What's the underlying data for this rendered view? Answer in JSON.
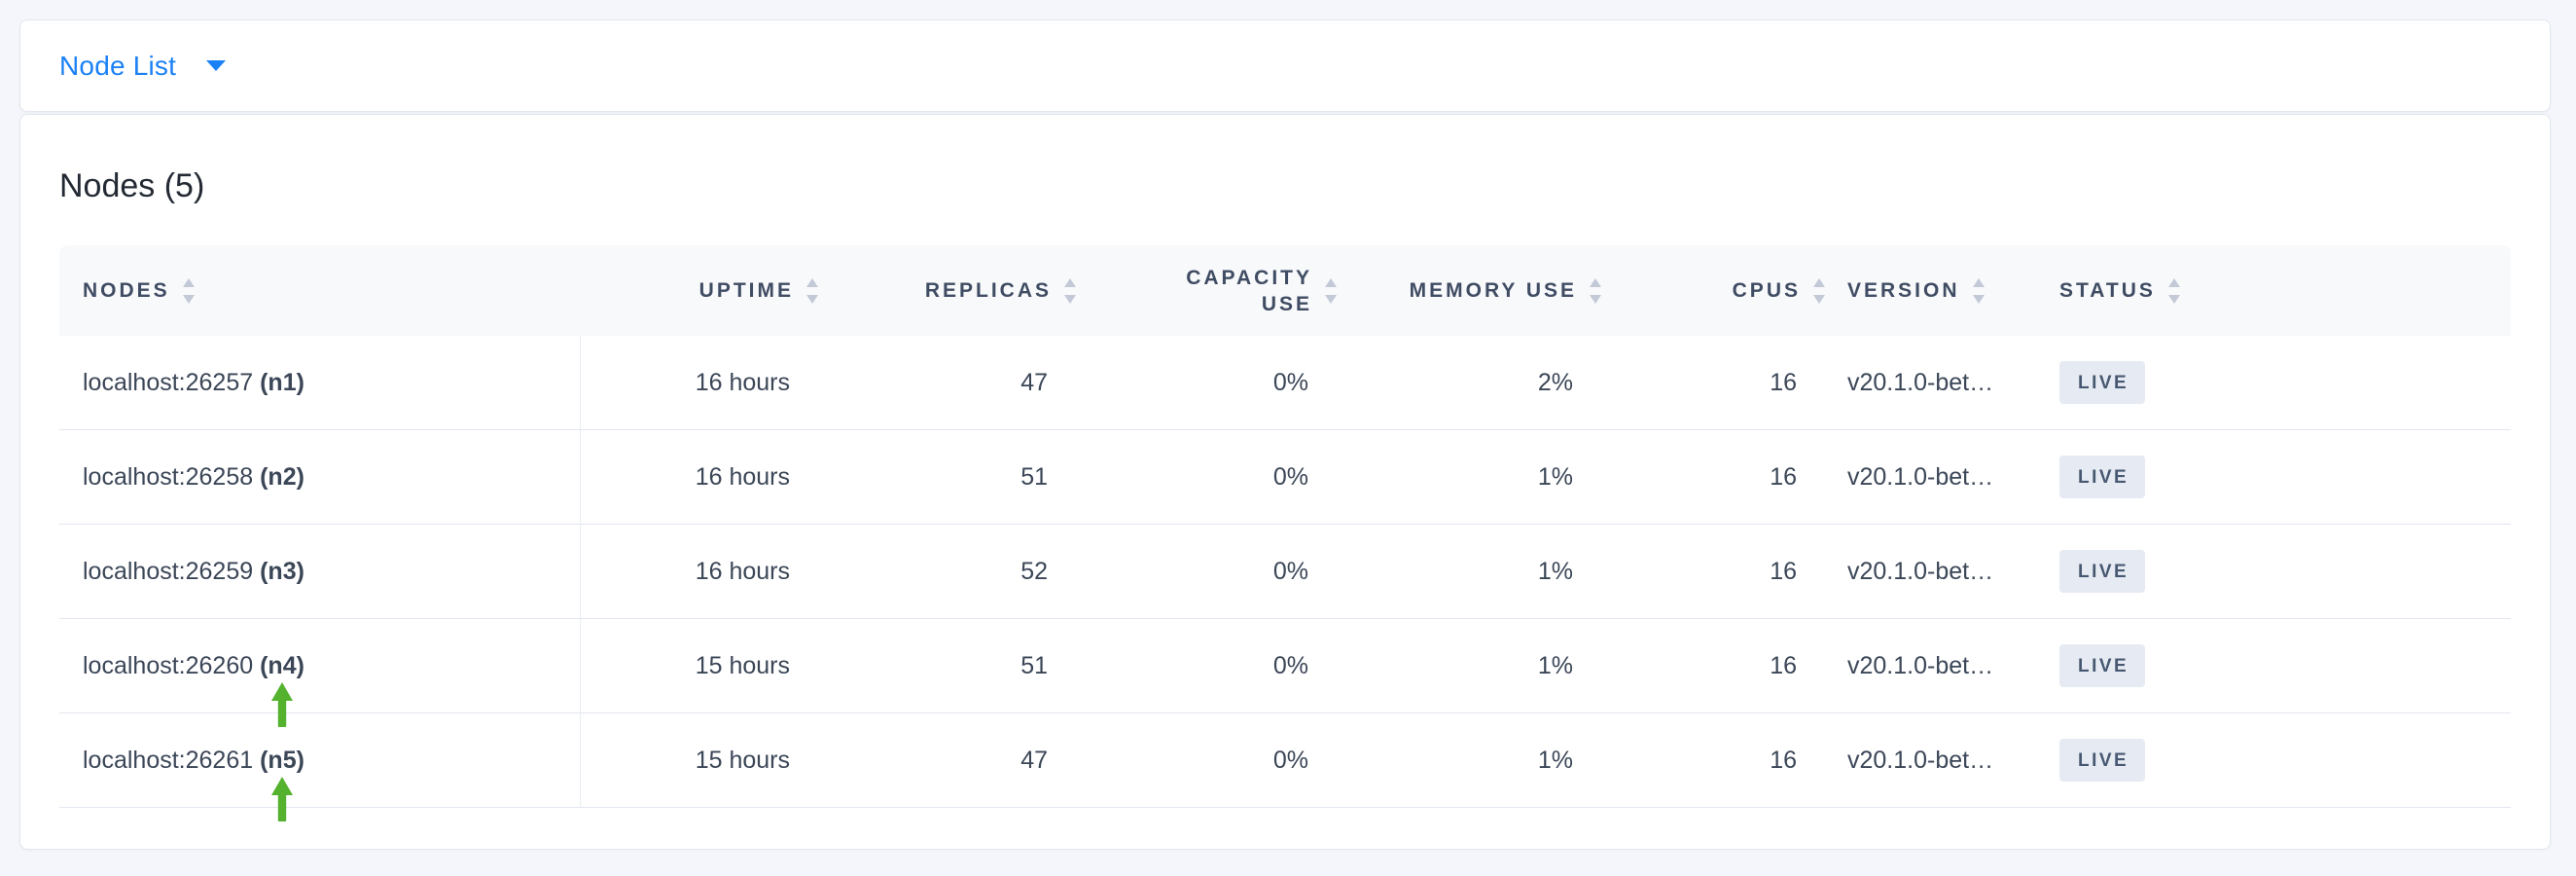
{
  "toolbar": {
    "dropdown_label": "Node List",
    "dropdown_icon": "caret-down-icon",
    "accent_color": "#1b81f5"
  },
  "main": {
    "title": "Nodes (5)",
    "table": {
      "columns": [
        {
          "label": "Nodes",
          "sortable": true
        },
        {
          "label": "Uptime",
          "sortable": true
        },
        {
          "label": "Replicas",
          "sortable": true
        },
        {
          "label": "Capacity Use",
          "sortable": true
        },
        {
          "label": "Memory Use",
          "sortable": true
        },
        {
          "label": "CPUs",
          "sortable": true
        },
        {
          "label": "Version",
          "sortable": true
        },
        {
          "label": "Status",
          "sortable": true
        }
      ],
      "rows": [
        {
          "node": "localhost:26257",
          "node_id": "(n1)",
          "uptime": "16 hours",
          "replicas": "47",
          "capacity_use": "0%",
          "memory_use": "2%",
          "cpus": "16",
          "version": "v20.1.0-bet…",
          "status": "LIVE",
          "highlight_arrow": false
        },
        {
          "node": "localhost:26258",
          "node_id": "(n2)",
          "uptime": "16 hours",
          "replicas": "51",
          "capacity_use": "0%",
          "memory_use": "1%",
          "cpus": "16",
          "version": "v20.1.0-bet…",
          "status": "LIVE",
          "highlight_arrow": false
        },
        {
          "node": "localhost:26259",
          "node_id": "(n3)",
          "uptime": "16 hours",
          "replicas": "52",
          "capacity_use": "0%",
          "memory_use": "1%",
          "cpus": "16",
          "version": "v20.1.0-bet…",
          "status": "LIVE",
          "highlight_arrow": false
        },
        {
          "node": "localhost:26260",
          "node_id": "(n4)",
          "uptime": "15 hours",
          "replicas": "51",
          "capacity_use": "0%",
          "memory_use": "1%",
          "cpus": "16",
          "version": "v20.1.0-bet…",
          "status": "LIVE",
          "highlight_arrow": true
        },
        {
          "node": "localhost:26261",
          "node_id": "(n5)",
          "uptime": "15 hours",
          "replicas": "47",
          "capacity_use": "0%",
          "memory_use": "1%",
          "cpus": "16",
          "version": "v20.1.0-bet…",
          "status": "LIVE",
          "highlight_arrow": true
        }
      ],
      "status_badge": {
        "background": "#e6eaf2",
        "text_color": "#475872"
      },
      "sort_icon_color": "#c3c9d7",
      "highlight_arrow_color": "#54b22e"
    }
  }
}
